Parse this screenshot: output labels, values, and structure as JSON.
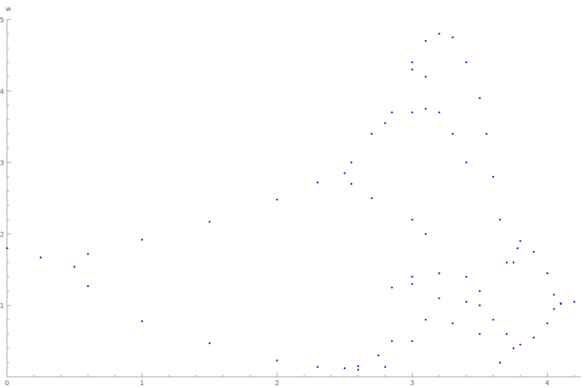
{
  "chart_data": {
    "type": "scatter",
    "title": "",
    "xlabel": "",
    "ylabel": "w",
    "xlim": [
      0,
      4.25
    ],
    "ylim": [
      0,
      5
    ],
    "x_ticks": [
      0,
      1,
      2,
      3,
      4
    ],
    "x_tick_labels": [
      "0",
      "1",
      "2",
      "3",
      "4"
    ],
    "y_ticks": [
      1,
      2,
      3,
      4,
      5
    ],
    "y_tick_labels": [
      "1",
      "2",
      "3",
      "4",
      "5"
    ],
    "x_minor_step": 0.2,
    "y_minor_step": 0.2,
    "grid": false,
    "colors": {
      "points": "#2b2bd6",
      "axis": "#9a9a9a",
      "tick_text": "#666666"
    },
    "series": [
      {
        "points": [
          [
            0.0,
            1.8
          ],
          [
            0.25,
            1.67
          ],
          [
            0.5,
            1.54
          ],
          [
            0.6,
            1.72
          ],
          [
            1.0,
            1.92
          ],
          [
            1.5,
            2.17
          ],
          [
            2.0,
            2.48
          ],
          [
            2.3,
            2.72
          ],
          [
            2.5,
            2.85
          ],
          [
            0.6,
            1.27
          ],
          [
            1.0,
            0.78
          ],
          [
            1.5,
            0.47
          ],
          [
            2.0,
            0.23
          ],
          [
            2.3,
            0.14
          ],
          [
            2.5,
            0.12
          ],
          [
            2.55,
            3.0
          ],
          [
            2.7,
            3.4
          ],
          [
            2.8,
            3.55
          ],
          [
            2.55,
            2.7
          ],
          [
            2.7,
            2.5
          ],
          [
            2.6,
            0.15
          ],
          [
            2.75,
            0.3
          ],
          [
            2.85,
            0.5
          ],
          [
            2.6,
            0.1
          ],
          [
            2.8,
            0.14
          ],
          [
            2.85,
            3.7
          ],
          [
            3.0,
            4.4
          ],
          [
            3.1,
            4.7
          ],
          [
            3.2,
            4.8
          ],
          [
            3.3,
            4.75
          ],
          [
            3.4,
            4.4
          ],
          [
            3.5,
            3.9
          ],
          [
            3.55,
            3.4
          ],
          [
            3.6,
            2.8
          ],
          [
            3.65,
            2.2
          ],
          [
            3.7,
            1.6
          ],
          [
            3.75,
            1.6
          ],
          [
            3.78,
            1.8
          ],
          [
            3.0,
            3.7
          ],
          [
            3.1,
            3.75
          ],
          [
            3.2,
            3.7
          ],
          [
            3.3,
            3.4
          ],
          [
            3.4,
            3.0
          ],
          [
            3.0,
            2.2
          ],
          [
            3.1,
            2.0
          ],
          [
            3.0,
            4.3
          ],
          [
            3.1,
            4.2
          ],
          [
            2.85,
            1.25
          ],
          [
            3.0,
            1.4
          ],
          [
            3.2,
            1.45
          ],
          [
            3.4,
            1.4
          ],
          [
            3.5,
            1.2
          ],
          [
            3.0,
            1.3
          ],
          [
            3.2,
            1.1
          ],
          [
            3.4,
            1.05
          ],
          [
            3.5,
            1.0
          ],
          [
            3.0,
            0.5
          ],
          [
            3.1,
            0.8
          ],
          [
            3.3,
            0.75
          ],
          [
            3.5,
            0.6
          ],
          [
            3.6,
            0.8
          ],
          [
            3.7,
            0.6
          ],
          [
            3.75,
            0.4
          ],
          [
            3.65,
            0.2
          ],
          [
            3.8,
            1.9
          ],
          [
            3.9,
            1.75
          ],
          [
            4.0,
            1.45
          ],
          [
            4.05,
            1.15
          ],
          [
            4.1,
            1.02
          ],
          [
            3.8,
            0.45
          ],
          [
            3.9,
            0.55
          ],
          [
            4.0,
            0.75
          ],
          [
            4.05,
            0.95
          ],
          [
            4.1,
            1.03
          ],
          [
            4.2,
            1.05
          ]
        ]
      }
    ]
  }
}
